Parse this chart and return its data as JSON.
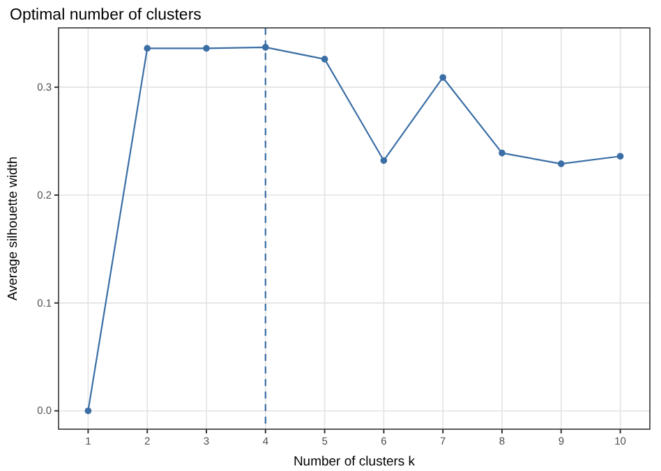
{
  "chart_data": {
    "type": "line",
    "title": "Optimal number of clusters",
    "xlabel": "Number of clusters k",
    "ylabel": "Average silhouette width",
    "categories": [
      "1",
      "2",
      "3",
      "4",
      "5",
      "6",
      "7",
      "8",
      "9",
      "10"
    ],
    "series": [
      {
        "color": "#3a6ea5",
        "values": [
          0,
          0.336,
          0.336,
          0.337,
          0.326,
          0.232,
          0.309,
          0.239,
          0.229,
          0.236
        ]
      }
    ],
    "ylim": [
      -0.017,
      0.355
    ],
    "yticks": [
      {
        "value": 0,
        "label": "0.0"
      },
      0.1,
      0.2,
      0.3
    ],
    "ref_lines": [
      {
        "axis": "x",
        "value": "4",
        "color": "#3a6ea5",
        "line_style": "dashed"
      }
    ],
    "grid": true,
    "marker": "circle",
    "line_style": "solid"
  }
}
